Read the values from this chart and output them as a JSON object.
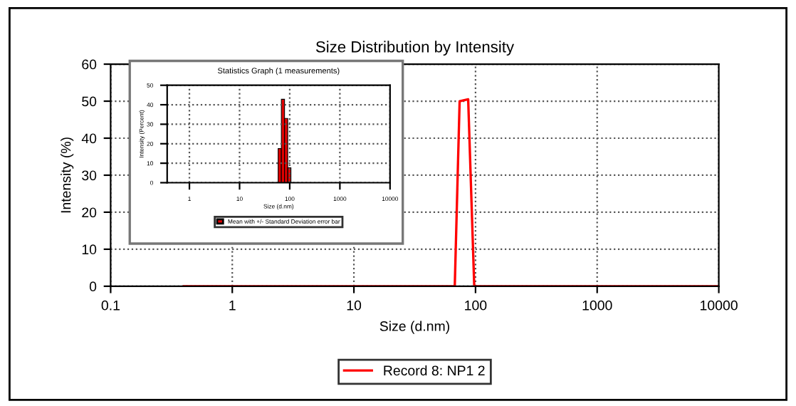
{
  "chart_data": [
    {
      "type": "line",
      "title": "Size Distribution by Intensity",
      "xlabel": "Size (d.nm)",
      "ylabel": "Intensity (%)",
      "log": "x",
      "xlim": [
        0.1,
        10000
      ],
      "xticks": [
        0.1,
        1,
        10,
        100,
        1000,
        10000
      ],
      "ylim": [
        0,
        60
      ],
      "yticks": [
        0,
        10,
        20,
        30,
        40,
        50,
        60
      ],
      "grid": true,
      "legend": "bottom",
      "marker": "none",
      "line_style": "solid",
      "series": [
        {
          "name": "Record 8: NP1 2",
          "color": "#ff0000",
          "x": [
            0.4,
            67.5,
            74,
            87,
            97.6,
            10000
          ],
          "values": [
            0,
            0,
            50,
            50.5,
            0,
            0
          ]
        }
      ]
    },
    {
      "type": "histogram",
      "title": "Statistics Graph (1 measurements)",
      "xlabel": "Size (d.nm)",
      "ylabel": "Intensity (Percent)",
      "log": "x",
      "xlim": [
        0.36,
        10000
      ],
      "xticks": [
        1,
        10,
        100,
        1000,
        10000
      ],
      "ylim": [
        0,
        50
      ],
      "yticks": [
        0,
        10,
        20,
        30,
        40,
        50
      ],
      "grid": true,
      "legend": "bottom",
      "bins": [
        58.8,
        68.1,
        78.8,
        91.3,
        105.7
      ],
      "series": [
        {
          "name": "Mean with +/- Standard Deviation error bar",
          "color": "#e00000",
          "values": [
            17.5,
            42.8,
            33,
            7.7
          ]
        }
      ]
    }
  ]
}
